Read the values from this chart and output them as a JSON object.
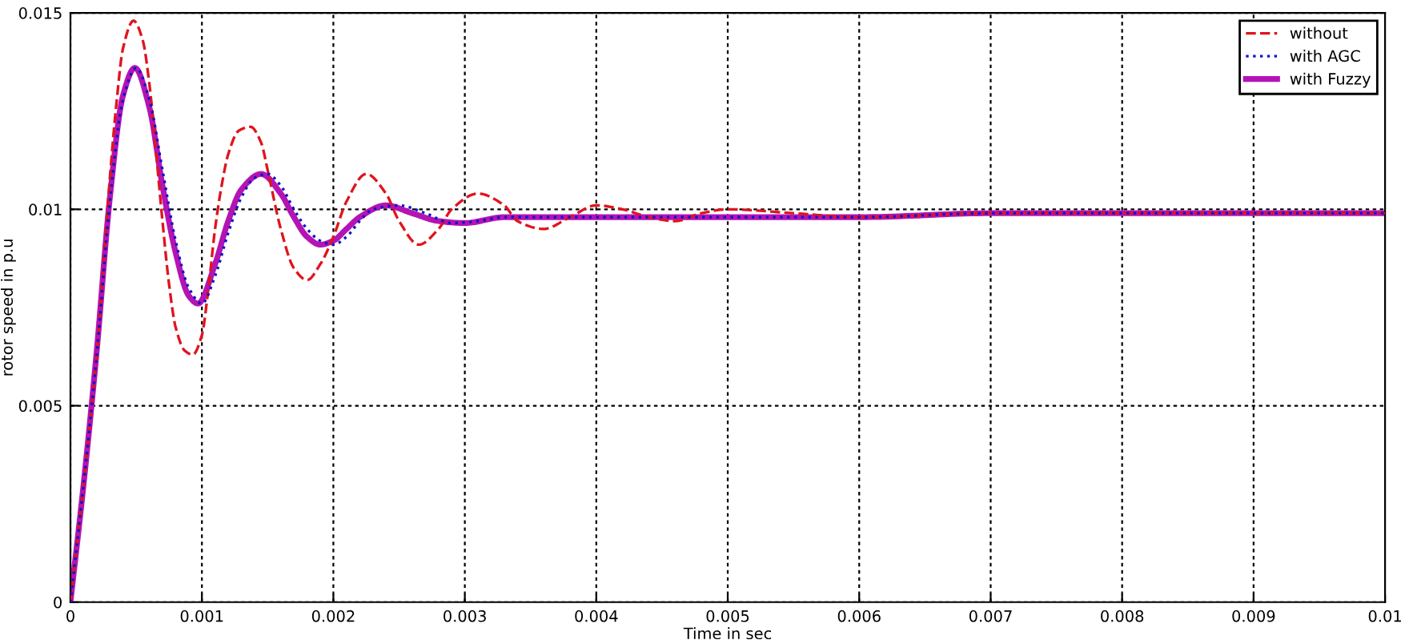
{
  "chart_data": {
    "type": "line",
    "xlabel": "Time in sec",
    "ylabel": "rotor speed in p.u",
    "xlim": [
      0,
      0.01
    ],
    "ylim": [
      0,
      0.015
    ],
    "xticks": [
      0,
      0.001,
      0.002,
      0.003,
      0.004,
      0.005,
      0.006,
      0.007,
      0.008,
      0.009,
      0.01
    ],
    "yticks": [
      0,
      0.005,
      0.01,
      0.015
    ],
    "grid": true,
    "legend": "top right",
    "marker": "none",
    "series": [
      {
        "name": "without",
        "color": "#e0141e",
        "line_style": "dashed",
        "x": [
          0,
          5e-05,
          0.0001,
          0.00015,
          0.0002,
          0.00025,
          0.0003,
          0.00035,
          0.0004,
          0.00048,
          0.00055,
          0.0006,
          0.00065,
          0.0007,
          0.00075,
          0.0008,
          0.00087,
          0.00093,
          0.001,
          0.00105,
          0.0011,
          0.00115,
          0.0012,
          0.00128,
          0.00137,
          0.00145,
          0.0015,
          0.0016,
          0.0017,
          0.0018,
          0.0019,
          0.002,
          0.0021,
          0.00225,
          0.0024,
          0.0025,
          0.00265,
          0.0028,
          0.0029,
          0.0031,
          0.0033,
          0.0034,
          0.0036,
          0.0038,
          0.004,
          0.0042,
          0.0044,
          0.0046,
          0.0048,
          0.005,
          0.0055,
          0.006,
          0.007,
          0.008,
          0.009,
          0.01
        ],
        "values": [
          0,
          0.0015,
          0.003,
          0.0046,
          0.0063,
          0.0085,
          0.0108,
          0.0127,
          0.0141,
          0.0148,
          0.0143,
          0.0132,
          0.0115,
          0.0097,
          0.0081,
          0.007,
          0.0064,
          0.0063,
          0.0068,
          0.008,
          0.0095,
          0.0106,
          0.0114,
          0.012,
          0.0121,
          0.0117,
          0.011,
          0.0095,
          0.0085,
          0.0082,
          0.0086,
          0.0093,
          0.0102,
          0.0109,
          0.0104,
          0.0097,
          0.0091,
          0.0095,
          0.01,
          0.0104,
          0.0101,
          0.0097,
          0.0095,
          0.0098,
          0.0101,
          0.01,
          0.0098,
          0.0097,
          0.0099,
          0.01,
          0.0099,
          0.0098,
          0.0099,
          0.0099,
          0.0099,
          0.0099
        ]
      },
      {
        "name": "with AGC",
        "color": "#1414c8",
        "line_style": "dotted",
        "x": [
          0,
          0.0001,
          0.0002,
          0.0003,
          0.0004,
          0.0005,
          0.0006,
          0.0007,
          0.0008,
          0.0009,
          0.001,
          0.0011,
          0.0012,
          0.0013,
          0.0014,
          0.0015,
          0.0016,
          0.0017,
          0.0018,
          0.0019,
          0.002,
          0.0021,
          0.0022,
          0.0023,
          0.0025,
          0.0027,
          0.0029,
          0.0031,
          0.0033,
          0.0036,
          0.004,
          0.005,
          0.006,
          0.007,
          0.008,
          0.01
        ],
        "values": [
          0,
          0.003,
          0.0063,
          0.0102,
          0.0128,
          0.0136,
          0.0128,
          0.011,
          0.0092,
          0.008,
          0.0076,
          0.0083,
          0.0094,
          0.0103,
          0.0108,
          0.0109,
          0.0106,
          0.01,
          0.0095,
          0.0092,
          0.0091,
          0.0093,
          0.0097,
          0.01,
          0.0101,
          0.0099,
          0.00965,
          0.0097,
          0.0098,
          0.0098,
          0.0098,
          0.0098,
          0.0098,
          0.0099,
          0.0099,
          0.0099
        ]
      },
      {
        "name": "with Fuzzy",
        "color": "#b414b4",
        "line_style": "solid",
        "x": [
          0,
          0.0001,
          0.0002,
          0.0003,
          0.0004,
          0.00049,
          0.0006,
          0.0007,
          0.0008,
          0.0009,
          0.00097,
          0.0011,
          0.0012,
          0.0013,
          0.00145,
          0.0016,
          0.0017,
          0.0018,
          0.0019,
          0.002,
          0.0021,
          0.0022,
          0.0024,
          0.0026,
          0.0028,
          0.003,
          0.0033,
          0.0036,
          0.004,
          0.005,
          0.006,
          0.007,
          0.008,
          0.01
        ],
        "values": [
          0,
          0.003,
          0.0064,
          0.0103,
          0.0129,
          0.0136,
          0.0126,
          0.0106,
          0.0089,
          0.0078,
          0.0076,
          0.0086,
          0.0097,
          0.0105,
          0.0109,
          0.0104,
          0.0098,
          0.0093,
          0.0091,
          0.0092,
          0.0095,
          0.0098,
          0.0101,
          0.0099,
          0.0097,
          0.00965,
          0.0098,
          0.0098,
          0.0098,
          0.0098,
          0.0098,
          0.0099,
          0.0099,
          0.0099
        ]
      }
    ]
  }
}
